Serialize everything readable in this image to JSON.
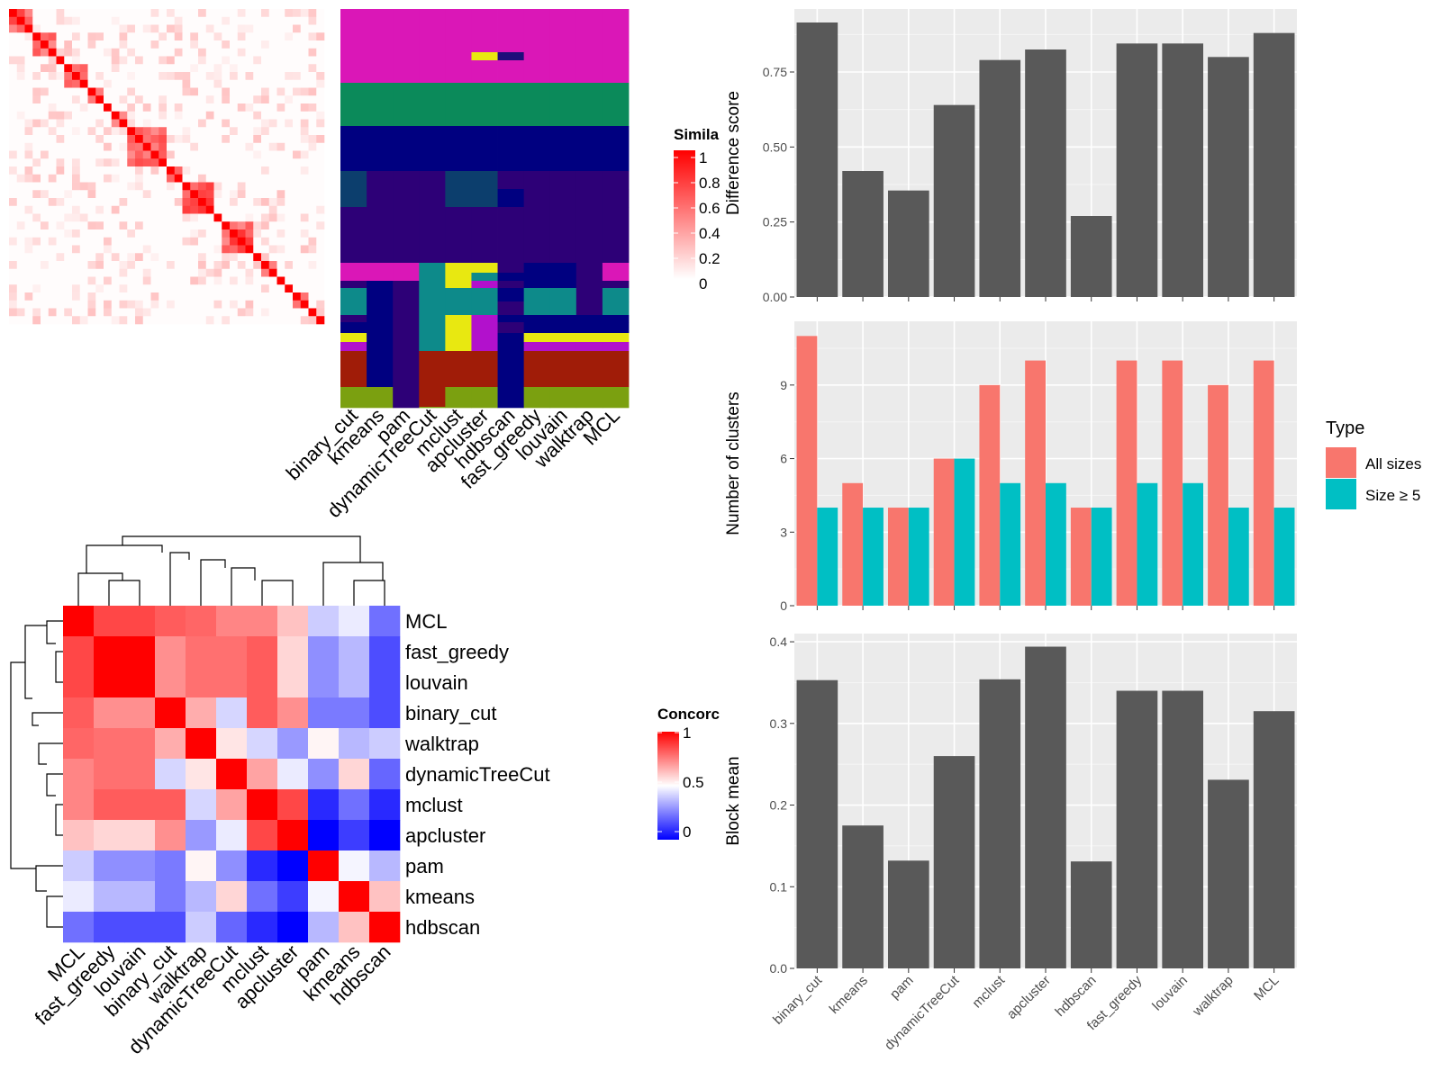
{
  "colors": {
    "heat_high": "#FF0000",
    "heat_low": "#FFFFFF",
    "concordance_low": "#0000FF",
    "bar_dark": "#595959",
    "panel_bg": "#EBEBEB",
    "all_sizes": "#F8766D",
    "size5": "#00BFC4"
  },
  "methods_top_heatmap": [
    "binary_cut",
    "kmeans",
    "pam",
    "dynamicTreeCut",
    "mclust",
    "apcluster",
    "hdbscan",
    "fast_greedy",
    "louvain",
    "walktrap",
    "MCL"
  ],
  "similarity_legend": {
    "title": "Simila",
    "labels": [
      "1",
      "0.8",
      "0.6",
      "0.4",
      "0.2",
      "0"
    ]
  },
  "concordance_legend": {
    "title": "Concorc",
    "labels": [
      "1",
      "0.5",
      "0"
    ]
  },
  "chart_data": [
    {
      "type": "heatmap",
      "name": "similarity",
      "n": 40,
      "blocks": [
        3,
        3,
        1,
        3,
        2,
        1,
        2,
        5,
        2,
        4,
        1,
        4,
        1,
        2,
        1,
        1,
        2,
        1,
        1,
        1
      ]
    },
    {
      "type": "heatmap",
      "name": "cluster_membership",
      "columns": [
        "binary_cut",
        "kmeans",
        "pam",
        "dynamicTreeCut",
        "mclust",
        "apcluster",
        "hdbscan",
        "fast_greedy",
        "louvain",
        "walktrap",
        "MCL"
      ]
    },
    {
      "type": "heatmap",
      "name": "concordance",
      "rows": [
        "MCL",
        "fast_greedy",
        "louvain",
        "binary_cut",
        "walktrap",
        "dynamicTreeCut",
        "mclust",
        "apcluster",
        "pam",
        "kmeans",
        "hdbscan"
      ],
      "cols": [
        "MCL",
        "fast_greedy",
        "louvain",
        "binary_cut",
        "walktrap",
        "dynamicTreeCut",
        "mclust",
        "apcluster",
        "pam",
        "kmeans",
        "hdbscan"
      ],
      "values": [
        [
          1.0,
          0.86,
          0.86,
          0.82,
          0.8,
          0.74,
          0.74,
          0.62,
          0.4,
          0.46,
          0.22
        ],
        [
          0.86,
          1.0,
          1.0,
          0.72,
          0.78,
          0.78,
          0.82,
          0.58,
          0.28,
          0.36,
          0.15
        ],
        [
          0.86,
          1.0,
          1.0,
          0.72,
          0.78,
          0.78,
          0.82,
          0.58,
          0.28,
          0.36,
          0.15
        ],
        [
          0.82,
          0.72,
          0.72,
          1.0,
          0.66,
          0.42,
          0.82,
          0.72,
          0.24,
          0.24,
          0.15
        ],
        [
          0.8,
          0.78,
          0.78,
          0.66,
          1.0,
          0.55,
          0.42,
          0.3,
          0.52,
          0.36,
          0.4
        ],
        [
          0.74,
          0.78,
          0.78,
          0.42,
          0.55,
          1.0,
          0.68,
          0.46,
          0.28,
          0.58,
          0.2
        ],
        [
          0.74,
          0.82,
          0.82,
          0.82,
          0.42,
          0.68,
          1.0,
          0.86,
          0.08,
          0.22,
          0.08
        ],
        [
          0.62,
          0.58,
          0.58,
          0.72,
          0.3,
          0.46,
          0.86,
          1.0,
          0.0,
          0.12,
          0.0
        ],
        [
          0.4,
          0.28,
          0.28,
          0.24,
          0.52,
          0.28,
          0.08,
          0.0,
          1.0,
          0.48,
          0.36
        ],
        [
          0.46,
          0.36,
          0.36,
          0.24,
          0.36,
          0.58,
          0.22,
          0.12,
          0.48,
          1.0,
          0.62
        ],
        [
          0.22,
          0.15,
          0.15,
          0.15,
          0.4,
          0.2,
          0.08,
          0.0,
          0.36,
          0.62,
          1.0
        ]
      ],
      "legend_title": "Concorc"
    },
    {
      "type": "bar",
      "name": "difference",
      "categories": [
        "binary_cut",
        "kmeans",
        "pam",
        "dynamicTreeCut",
        "mclust",
        "apcluster",
        "hdbscan",
        "fast_greedy",
        "louvain",
        "walktrap",
        "MCL"
      ],
      "values": [
        0.915,
        0.42,
        0.355,
        0.64,
        0.79,
        0.825,
        0.27,
        0.845,
        0.845,
        0.8,
        0.88
      ],
      "ylabel": "Difference score",
      "ylim": [
        0,
        0.96
      ],
      "yticks": [
        "0.00",
        "0.25",
        "0.50",
        "0.75"
      ],
      "ytick_values": [
        0,
        0.25,
        0.5,
        0.75
      ],
      "grid": true
    },
    {
      "type": "bar",
      "name": "nclusters",
      "categories": [
        "binary_cut",
        "kmeans",
        "pam",
        "dynamicTreeCut",
        "mclust",
        "apcluster",
        "hdbscan",
        "fast_greedy",
        "louvain",
        "walktrap",
        "MCL"
      ],
      "series": [
        {
          "name": "All sizes",
          "values": [
            11,
            5,
            4,
            6,
            9,
            10,
            4,
            10,
            10,
            9,
            10
          ]
        },
        {
          "name": "Size ≥ 5",
          "values": [
            4,
            4,
            4,
            6,
            5,
            5,
            4,
            5,
            5,
            4,
            4
          ]
        }
      ],
      "ylabel": "Number of clusters",
      "ylim": [
        0,
        11.6
      ],
      "yticks": [
        "0",
        "3",
        "6",
        "9"
      ],
      "ytick_values": [
        0,
        3,
        6,
        9
      ],
      "legend_title": "Type",
      "legend_position": "right",
      "grid": true
    },
    {
      "type": "bar",
      "name": "blockmean",
      "categories": [
        "binary_cut",
        "kmeans",
        "pam",
        "dynamicTreeCut",
        "mclust",
        "apcluster",
        "hdbscan",
        "fast_greedy",
        "louvain",
        "walktrap",
        "MCL"
      ],
      "values": [
        0.353,
        0.175,
        0.132,
        0.26,
        0.354,
        0.394,
        0.131,
        0.34,
        0.34,
        0.231,
        0.315
      ],
      "ylabel": "Block mean",
      "ylim": [
        0,
        0.41
      ],
      "yticks": [
        "0.0",
        "0.1",
        "0.2",
        "0.3",
        "0.4"
      ],
      "ytick_values": [
        0,
        0.1,
        0.2,
        0.3,
        0.4
      ],
      "grid": true
    }
  ]
}
